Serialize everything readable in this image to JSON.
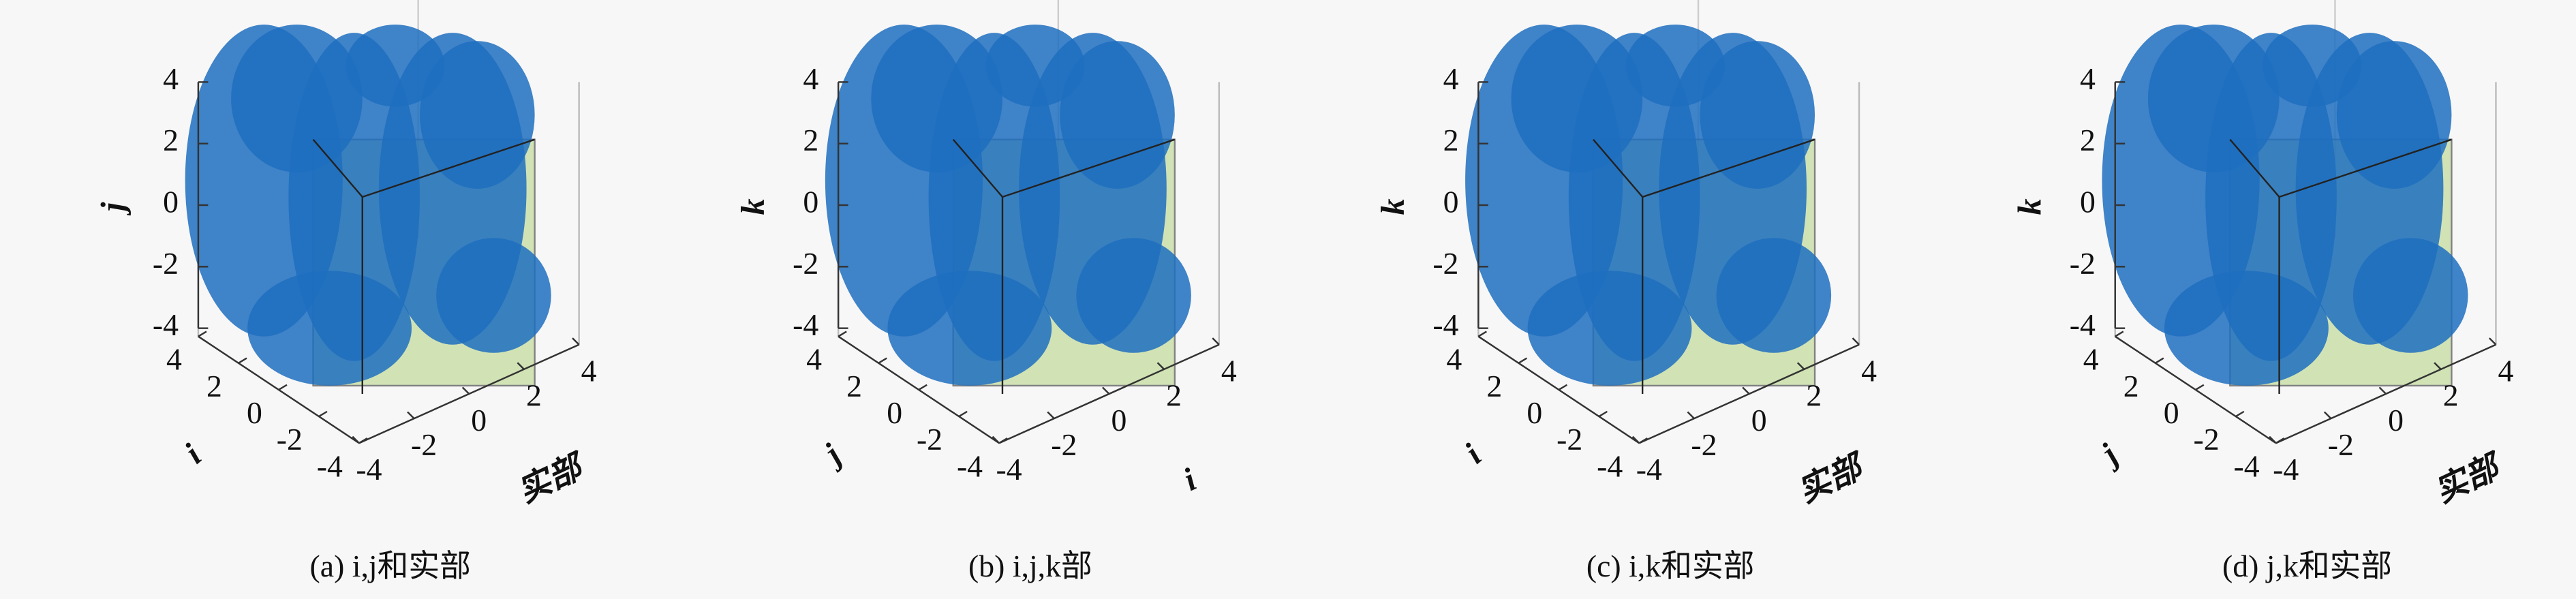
{
  "chart_data": [
    {
      "type": "scatter3d",
      "caption": "(a) i,j和实部",
      "xlabel": "i",
      "ylabel": "实部",
      "zlabel": "j",
      "xlim": [
        -4,
        4
      ],
      "ylim": [
        -4,
        4
      ],
      "zlim": [
        -4,
        4
      ],
      "xticks": [
        -4,
        -2,
        0,
        2,
        4
      ],
      "yticks": [
        -4,
        -2,
        0,
        2,
        4
      ],
      "zticks": [
        -4,
        -2,
        0,
        2,
        4
      ],
      "color": "#1f6fc0"
    },
    {
      "type": "scatter3d",
      "caption": "(b) i,j,k部",
      "xlabel": "j",
      "ylabel": "i",
      "zlabel": "k",
      "xlim": [
        -4,
        4
      ],
      "ylim": [
        -4,
        4
      ],
      "zlim": [
        -4,
        4
      ],
      "xticks": [
        -4,
        -2,
        0,
        2,
        4
      ],
      "yticks": [
        -4,
        -2,
        0,
        2,
        4
      ],
      "zticks": [
        -4,
        -2,
        0,
        2,
        4
      ],
      "color": "#1f6fc0"
    },
    {
      "type": "scatter3d",
      "caption": "(c) i,k和实部",
      "xlabel": "i",
      "ylabel": "实部",
      "zlabel": "k",
      "xlim": [
        -4,
        4
      ],
      "ylim": [
        -4,
        4
      ],
      "zlim": [
        -4,
        4
      ],
      "xticks": [
        -4,
        -2,
        0,
        2,
        4
      ],
      "yticks": [
        -4,
        -2,
        0,
        2,
        4
      ],
      "zticks": [
        -4,
        -2,
        0,
        2,
        4
      ],
      "color": "#1f6fc0"
    },
    {
      "type": "scatter3d",
      "caption": "(d) j,k和实部",
      "xlabel": "j",
      "ylabel": "实部",
      "zlabel": "k",
      "xlim": [
        -4,
        4
      ],
      "ylim": [
        -4,
        4
      ],
      "zlim": [
        -4,
        4
      ],
      "xticks": [
        -4,
        -2,
        0,
        2,
        4
      ],
      "yticks": [
        -4,
        -2,
        0,
        2,
        4
      ],
      "zticks": [
        -4,
        -2,
        0,
        2,
        4
      ],
      "color": "#1f6fc0"
    }
  ]
}
